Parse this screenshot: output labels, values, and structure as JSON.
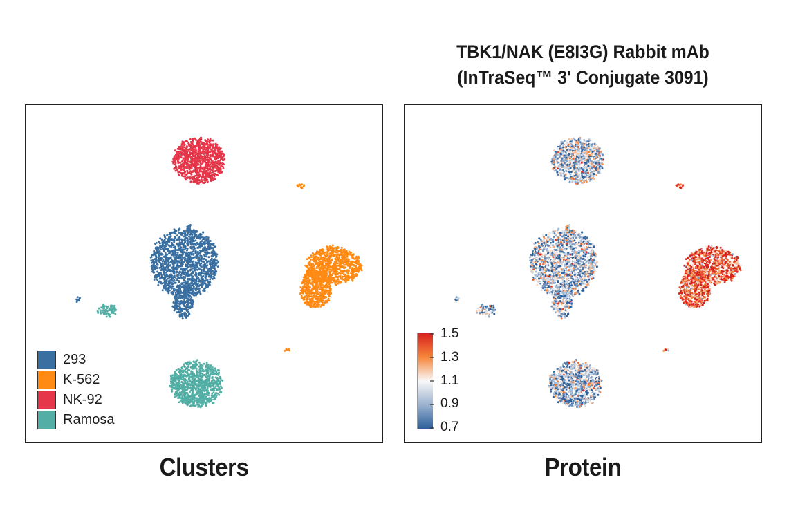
{
  "title_lines": [
    "TBK1/NAK (E8I3G) Rabbit mAb",
    "(InTraSeq™ 3' Conjugate 3091)"
  ],
  "colors": {
    "293": "#3a6fa1",
    "K-562": "#ff8a14",
    "NK-92": "#e5364a",
    "Ramosa": "#53afa5"
  },
  "chart_data": [
    {
      "type": "scatter",
      "title": "Clusters",
      "xlabel": "",
      "ylabel": "",
      "grid": false,
      "legend_position": "bottom-left",
      "legend": [
        "293",
        "K-562",
        "NK-92",
        "Ramosa"
      ],
      "series": [
        {
          "name": "293",
          "cluster_count": 2
        },
        {
          "name": "K-562",
          "cluster_count": 3
        },
        {
          "name": "NK-92",
          "cluster_count": 1
        },
        {
          "name": "Ramosa",
          "cluster_count": 2
        }
      ]
    },
    {
      "type": "scatter",
      "title": "Protein",
      "xlabel": "",
      "ylabel": "",
      "grid": false,
      "colorbar": {
        "ticks": [
          "1.5",
          "1.3",
          "1.1",
          "0.9",
          "0.7"
        ],
        "min": 0.7,
        "max": 1.5,
        "colors": [
          "#2b5f9b",
          "#f6f6f6",
          "#d8201f"
        ]
      },
      "cluster_means": {
        "293": 1.0,
        "K-562": 1.35,
        "NK-92": 0.95,
        "Ramosa": 0.95
      }
    }
  ],
  "captions": {
    "left": "Clusters",
    "right": "Protein"
  }
}
